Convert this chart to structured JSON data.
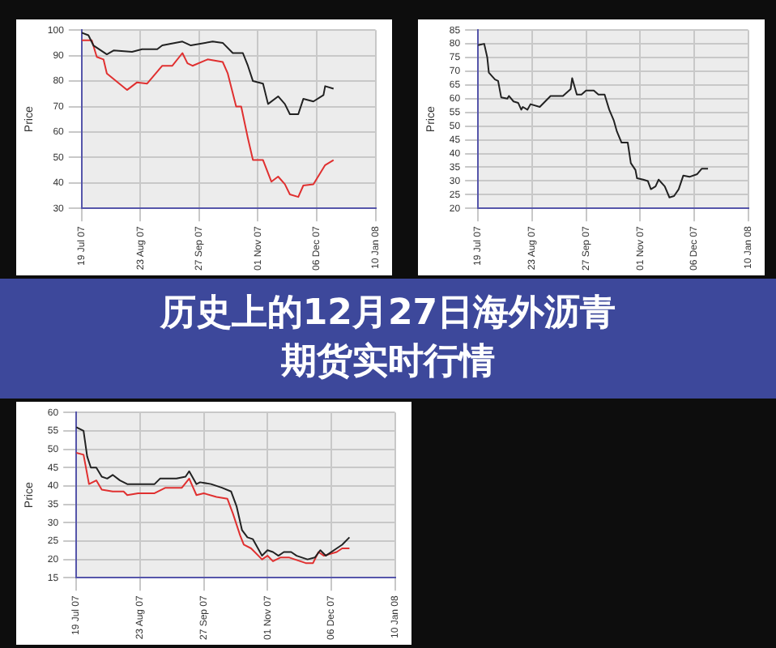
{
  "chart_data": [
    {
      "type": "line",
      "ylabel": "Price",
      "xlim": [
        "2007-07-19",
        "2008-01-10"
      ],
      "ylim": [
        30,
        100
      ],
      "yticks": [
        30,
        40,
        50,
        60,
        70,
        80,
        90,
        100
      ],
      "xticks": [
        {
          "value": "2007-07-19",
          "label": "19 Jul 07"
        },
        {
          "value": "2007-08-23",
          "label": "23 Aug 07"
        },
        {
          "value": "2007-09-27",
          "label": "27 Sep 07"
        },
        {
          "value": "2007-11-01",
          "label": "01 Nov 07"
        },
        {
          "value": "2007-12-06",
          "label": "06 Dec 07"
        },
        {
          "value": "2008-01-10",
          "label": "10 Jan 08"
        }
      ],
      "grid": true,
      "legend": false,
      "marker": "none",
      "line_style": "solid",
      "series": [
        {
          "color": "#222222",
          "x": [
            "2007-07-19",
            "2007-07-23",
            "2007-07-26",
            "2007-08-03",
            "2007-08-07",
            "2007-08-18",
            "2007-08-24",
            "2007-09-02",
            "2007-09-05",
            "2007-09-17",
            "2007-09-22",
            "2007-10-05",
            "2007-10-11",
            "2007-10-17",
            "2007-10-23",
            "2007-10-26",
            "2007-10-29",
            "2007-11-04",
            "2007-11-07",
            "2007-11-13",
            "2007-11-17",
            "2007-11-20",
            "2007-11-25",
            "2007-11-28",
            "2007-12-04",
            "2007-12-10",
            "2007-12-11",
            "2007-12-16"
          ],
          "values": [
            99,
            98,
            94,
            90.5,
            92,
            91.5,
            92.5,
            92.5,
            94,
            95.5,
            94,
            95.5,
            95,
            91,
            91,
            86,
            80,
            79,
            71,
            74,
            71,
            67,
            67,
            73,
            72,
            74.5,
            78,
            77
          ]
        },
        {
          "color": "#e03030",
          "x": [
            "2007-07-19",
            "2007-07-25",
            "2007-07-28",
            "2007-08-01",
            "2007-08-03",
            "2007-08-15",
            "2007-08-21",
            "2007-08-27",
            "2007-09-05",
            "2007-09-11",
            "2007-09-17",
            "2007-09-20",
            "2007-09-23",
            "2007-10-02",
            "2007-10-11",
            "2007-10-14",
            "2007-10-19",
            "2007-10-22",
            "2007-10-26",
            "2007-10-29",
            "2007-11-04",
            "2007-11-09",
            "2007-11-13",
            "2007-11-17",
            "2007-11-20",
            "2007-11-25",
            "2007-11-28",
            "2007-12-04",
            "2007-12-11",
            "2007-12-16"
          ],
          "values": [
            96,
            96,
            89.5,
            88.5,
            83,
            76.5,
            79.5,
            79,
            86,
            86,
            91,
            87,
            86,
            88.5,
            87.5,
            83,
            70,
            70,
            57.5,
            49,
            49,
            40.5,
            42.5,
            39.5,
            35.5,
            34.5,
            39,
            39.5,
            47,
            49
          ]
        }
      ]
    },
    {
      "type": "line",
      "ylabel": "Price",
      "xlim": [
        "2007-07-19",
        "2008-01-10"
      ],
      "ylim": [
        20,
        85
      ],
      "yticks": [
        20,
        25,
        30,
        35,
        40,
        45,
        50,
        55,
        60,
        65,
        70,
        75,
        80,
        85
      ],
      "xticks": [
        {
          "value": "2007-07-19",
          "label": "19 Jul 07"
        },
        {
          "value": "2007-08-23",
          "label": "23 Aug 07"
        },
        {
          "value": "2007-09-27",
          "label": "27 Sep 07"
        },
        {
          "value": "2007-11-01",
          "label": "01 Nov 07"
        },
        {
          "value": "2007-12-06",
          "label": "06 Dec 07"
        },
        {
          "value": "2008-01-10",
          "label": "10 Jan 08"
        }
      ],
      "grid": true,
      "legend": false,
      "marker": "none",
      "line_style": "solid",
      "series": [
        {
          "color": "#222222",
          "x": [
            "2007-07-19",
            "2007-07-23",
            "2007-07-25",
            "2007-07-26",
            "2007-07-30",
            "2007-08-01",
            "2007-08-03",
            "2007-08-07",
            "2007-08-08",
            "2007-08-11",
            "2007-08-14",
            "2007-08-16",
            "2007-08-17",
            "2007-08-20",
            "2007-08-22",
            "2007-08-28",
            "2007-09-04",
            "2007-09-12",
            "2007-09-17",
            "2007-09-18",
            "2007-09-21",
            "2007-09-24",
            "2007-09-27",
            "2007-10-02",
            "2007-10-05",
            "2007-10-09",
            "2007-10-12",
            "2007-10-15",
            "2007-10-17",
            "2007-10-20",
            "2007-10-24",
            "2007-10-26",
            "2007-10-29",
            "2007-10-30",
            "2007-11-03",
            "2007-11-06",
            "2007-11-08",
            "2007-11-11",
            "2007-11-13",
            "2007-11-17",
            "2007-11-20",
            "2007-11-23",
            "2007-11-26",
            "2007-11-29",
            "2007-12-03",
            "2007-12-08",
            "2007-12-11",
            "2007-12-15"
          ],
          "values": [
            79.5,
            80,
            75,
            69.5,
            67,
            66.5,
            60.5,
            60,
            61,
            59,
            58.5,
            56,
            57,
            56,
            58,
            57,
            61,
            61,
            63.5,
            67.5,
            61.5,
            61.5,
            63,
            63,
            61.5,
            61.5,
            56,
            52,
            48,
            44,
            44,
            36.5,
            34,
            31,
            30.5,
            30,
            27,
            28,
            30.5,
            28,
            24,
            24.5,
            27,
            32,
            31.5,
            32.5,
            34.5,
            34.5
          ]
        }
      ]
    },
    {
      "type": "line",
      "ylabel": "Price",
      "xlim": [
        "2007-07-19",
        "2008-01-10"
      ],
      "ylim": [
        15,
        60
      ],
      "yticks": [
        15,
        20,
        25,
        30,
        35,
        40,
        45,
        50,
        55,
        60
      ],
      "xticks": [
        {
          "value": "2007-07-19",
          "label": "19 Jul 07"
        },
        {
          "value": "2007-08-23",
          "label": "23 Aug 07"
        },
        {
          "value": "2007-09-27",
          "label": "27 Sep 07"
        },
        {
          "value": "2007-11-01",
          "label": "01 Nov 07"
        },
        {
          "value": "2007-12-06",
          "label": "06 Dec 07"
        },
        {
          "value": "2008-01-10",
          "label": "10 Jan 08"
        }
      ],
      "grid": true,
      "legend": false,
      "marker": "none",
      "line_style": "solid",
      "series": [
        {
          "color": "#222222",
          "x": [
            "2007-07-19",
            "2007-07-23",
            "2007-07-25",
            "2007-07-27",
            "2007-07-30",
            "2007-08-02",
            "2007-08-05",
            "2007-08-08",
            "2007-08-12",
            "2007-08-16",
            "2007-08-22",
            "2007-08-31",
            "2007-09-03",
            "2007-09-12",
            "2007-09-17",
            "2007-09-19",
            "2007-09-23",
            "2007-09-25",
            "2007-10-01",
            "2007-10-07",
            "2007-10-12",
            "2007-10-15",
            "2007-10-18",
            "2007-10-21",
            "2007-10-24",
            "2007-10-29",
            "2007-11-01",
            "2007-11-04",
            "2007-11-07",
            "2007-11-10",
            "2007-11-14",
            "2007-11-17",
            "2007-11-23",
            "2007-11-27",
            "2007-11-30",
            "2007-12-03",
            "2007-12-09",
            "2007-12-12",
            "2007-12-16"
          ],
          "values": [
            56,
            55,
            48,
            45,
            45,
            42.5,
            42,
            43,
            41.5,
            40.5,
            40.5,
            40.5,
            42,
            42,
            42.5,
            44,
            40.5,
            41,
            40.5,
            39.5,
            38.5,
            34.5,
            28,
            26,
            25.5,
            21,
            22.5,
            22,
            21,
            22,
            22,
            21,
            20,
            20.5,
            22.5,
            21,
            23,
            24,
            26
          ]
        },
        {
          "color": "#e03030",
          "x": [
            "2007-07-19",
            "2007-07-23",
            "2007-07-26",
            "2007-07-30",
            "2007-08-02",
            "2007-08-08",
            "2007-08-14",
            "2007-08-16",
            "2007-08-22",
            "2007-08-31",
            "2007-09-06",
            "2007-09-15",
            "2007-09-19",
            "2007-09-23",
            "2007-09-27",
            "2007-10-04",
            "2007-10-10",
            "2007-10-13",
            "2007-10-17",
            "2007-10-19",
            "2007-10-23",
            "2007-10-29",
            "2007-11-01",
            "2007-11-04",
            "2007-11-08",
            "2007-11-13",
            "2007-11-16",
            "2007-11-22",
            "2007-11-26",
            "2007-11-29",
            "2007-12-02",
            "2007-12-09",
            "2007-12-12",
            "2007-12-16"
          ],
          "values": [
            49,
            48.5,
            40.5,
            41.5,
            39,
            38.5,
            38.5,
            37.5,
            38,
            38,
            39.5,
            39.5,
            42,
            37.5,
            38,
            37,
            36.5,
            32.5,
            26.5,
            24,
            23,
            20,
            21,
            19.5,
            20.5,
            20.5,
            20,
            19,
            19,
            22,
            21,
            22,
            23,
            23
          ]
        }
      ]
    },
    {
      "type": "other",
      "title": "历史上的12月27日海外沥青期货实时行情"
    }
  ]
}
